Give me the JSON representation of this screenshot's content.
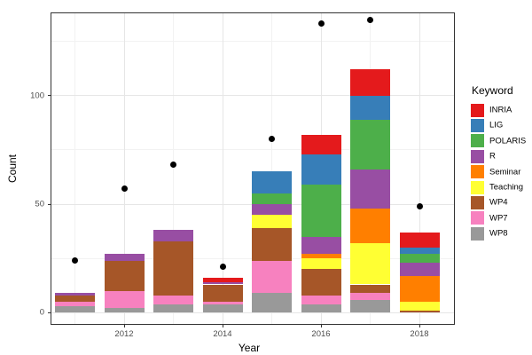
{
  "figure": {
    "background": "#ffffff",
    "panel_border_color": "#333333",
    "grid_major_color": "#e6e6e6",
    "grid_minor_color": "#f2f2f2",
    "point_color": "#000000"
  },
  "axes": {
    "x": {
      "title": "Year",
      "tick_labels": [
        "2012",
        "2014",
        "2016",
        "2018"
      ]
    },
    "y": {
      "title": "Count",
      "tick_labels": [
        "0",
        "50",
        "100"
      ]
    }
  },
  "legend": {
    "title": "Keyword",
    "position": "right"
  },
  "chart_data": {
    "type": "bar",
    "subtype": "stacked-bars-with-scatter-overlay",
    "title": "",
    "xlabel": "Year",
    "ylabel": "Count",
    "categories": [
      2011,
      2012,
      2013,
      2014,
      2015,
      2016,
      2017,
      2018
    ],
    "series": [
      {
        "name": "INRIA",
        "color": "#E41A1C",
        "values": [
          0,
          0,
          0,
          2,
          0,
          9,
          12,
          7
        ]
      },
      {
        "name": "LIG",
        "color": "#377EB8",
        "values": [
          0,
          0,
          0,
          0,
          10,
          14,
          11,
          3
        ]
      },
      {
        "name": "POLARIS",
        "color": "#4DAF4A",
        "values": [
          0,
          0,
          0,
          0,
          5,
          24,
          23,
          4
        ]
      },
      {
        "name": "R",
        "color": "#984EA3",
        "values": [
          1,
          3,
          5,
          1,
          5,
          8,
          18,
          6
        ]
      },
      {
        "name": "Seminar",
        "color": "#FF7F00",
        "values": [
          0,
          0,
          0,
          0,
          0,
          2,
          16,
          12
        ]
      },
      {
        "name": "Teaching",
        "color": "#FFFF33",
        "values": [
          0,
          0,
          0,
          0,
          6,
          5,
          19,
          4
        ]
      },
      {
        "name": "WP4",
        "color": "#A65628",
        "values": [
          3,
          14,
          25,
          8,
          15,
          12,
          4,
          1
        ]
      },
      {
        "name": "WP7",
        "color": "#F781BF",
        "values": [
          2,
          8,
          4,
          1,
          15,
          4,
          3,
          0
        ]
      },
      {
        "name": "WP8",
        "color": "#999999",
        "values": [
          3,
          2,
          4,
          4,
          9,
          4,
          6,
          0
        ]
      }
    ],
    "stack_order_bottom_to_top": [
      "WP8",
      "WP7",
      "WP4",
      "Teaching",
      "Seminar",
      "R",
      "POLARIS",
      "LIG",
      "INRIA"
    ],
    "bar_totals": [
      9,
      27,
      38,
      16,
      65,
      82,
      112,
      37
    ],
    "scatter_points": {
      "name": "black-dots",
      "x": [
        2011,
        2012,
        2013,
        2014,
        2015,
        2016,
        2017,
        2018
      ],
      "values": [
        24,
        57,
        68,
        21,
        80,
        133,
        135,
        49
      ]
    },
    "ylim": [
      0,
      138
    ],
    "y_major_breaks": [
      0,
      50,
      100
    ],
    "y_minor_breaks": [
      25,
      75,
      125
    ],
    "x_major_breaks": [
      2012,
      2014,
      2016,
      2018
    ],
    "x_minor_breaks": [
      2011,
      2013,
      2015,
      2017
    ],
    "grid": true,
    "legend_position": "right",
    "legend_title": "Keyword"
  }
}
